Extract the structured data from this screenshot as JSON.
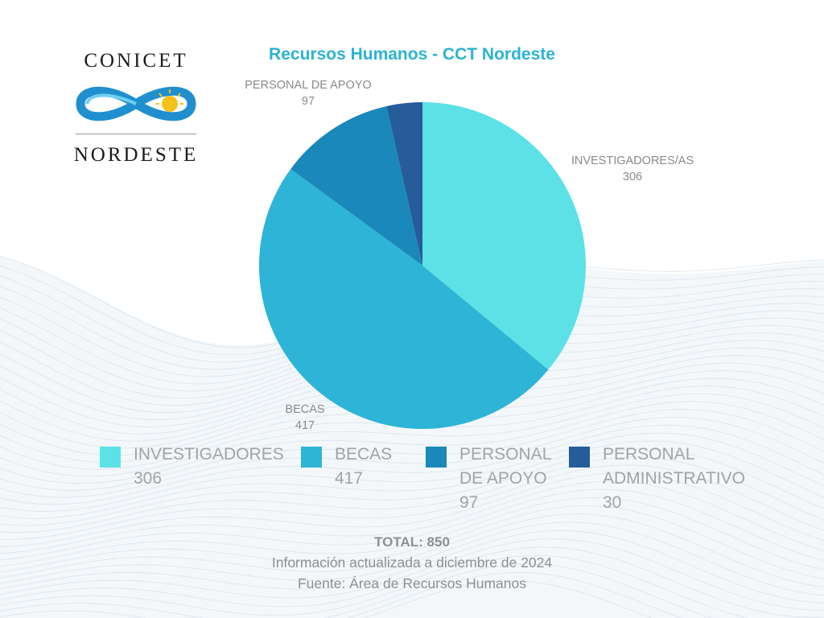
{
  "logo": {
    "top_text": "CONICET",
    "bottom_text": "NORDESTE"
  },
  "colors": {
    "investigadores": "#5ce1e6",
    "becas": "#2eb4d6",
    "personal_apoyo": "#1a88ba",
    "personal_administrativo": "#265c9a",
    "title": "#2bb3d2"
  },
  "chart_data": {
    "type": "pie",
    "title": "Recursos Humanos - CCT Nordeste",
    "slices": [
      {
        "name": "INVESTIGADORES",
        "label": "INVESTIGADORES/AS",
        "value": 306,
        "color": "#5ce1e6"
      },
      {
        "name": "BECAS",
        "label": "BECAS",
        "value": 417,
        "color": "#2eb4d6"
      },
      {
        "name": "PERSONAL DE APOYO",
        "label": "PERSONAL DE APOYO",
        "value": 97,
        "color": "#1a88ba"
      },
      {
        "name": "PERSONAL ADMINISTRATIVO",
        "label": "",
        "value": 30,
        "color": "#265c9a"
      }
    ],
    "legend": [
      {
        "text": "INVESTIGADORES\n306",
        "color": "#5ce1e6"
      },
      {
        "text": "BECAS\n417",
        "color": "#2eb4d6"
      },
      {
        "text": "PERSONAL\nDE APOYO\n97",
        "color": "#1a88ba"
      },
      {
        "text": "PERSONAL\nADMINISTRATIVO\n30",
        "color": "#265c9a"
      }
    ],
    "legend_placement": "bottom"
  },
  "footer": {
    "total": "TOTAL: 850",
    "updated": "Información actualizada a diciembre de 2024",
    "source": "Fuente: Área de Recursos Humanos"
  }
}
